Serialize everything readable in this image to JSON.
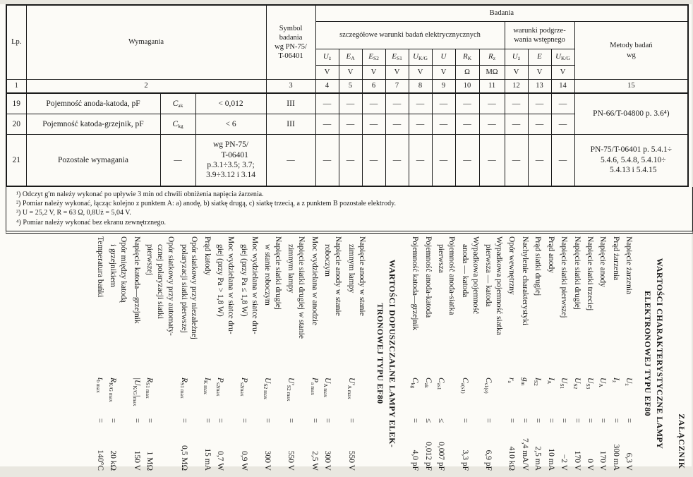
{
  "table": {
    "header": {
      "lp": "Lp.",
      "wymagania": "Wymagania",
      "symbol_badania": "Symbol\nbadania\nwg PN-75/\nT-06401",
      "badania": "Badania",
      "szczegolowe": "szczegółowe warunki badań elektrycznycznych",
      "podgrzewanie": "warunki podgrze-\nwania wstępnego",
      "metody": "Metody badań\nwg"
    },
    "cols": [
      {
        "m": "U",
        "s": "ż",
        "u": "V",
        "n": "4"
      },
      {
        "m": "E",
        "s": "A",
        "u": "V",
        "n": "5"
      },
      {
        "m": "E",
        "s": "S2",
        "u": "V",
        "n": "6"
      },
      {
        "m": "E",
        "s": "S1",
        "u": "V",
        "n": "7"
      },
      {
        "m": "U",
        "s": "K/G",
        "u": "V",
        "n": "8"
      },
      {
        "m": "U",
        "s": "",
        "u": "V",
        "n": "9"
      },
      {
        "m": "R",
        "s": "K",
        "u": "Ω",
        "n": "10"
      },
      {
        "m": "R",
        "s": "z",
        "u": "MΩ",
        "n": "11"
      },
      {
        "m": "U",
        "s": "ż",
        "u": "V",
        "n": "12"
      },
      {
        "m": "E",
        "s": "",
        "u": "V",
        "n": "13"
      },
      {
        "m": "U",
        "s": "K/G",
        "u": "V",
        "n": "14"
      }
    ],
    "nums": {
      "c1": "1",
      "c2": "2",
      "c3": "3",
      "c15": "15"
    },
    "rows": [
      {
        "lp": "19",
        "desc": "Pojemność anoda-katoda, pF",
        "sym_m": "C",
        "sym_s": "ak",
        "val": "< 0,012",
        "col3": "III"
      },
      {
        "lp": "20",
        "desc": "Pojemność katoda-grzejnik, pF",
        "sym_m": "C",
        "sym_s": "kg",
        "val": "< 6",
        "col3": "III"
      },
      {
        "lp": "21",
        "desc": "Pozostałe wymagania",
        "sym_dash": "—",
        "val": "wg PN-75/\n    T-06401\np.3.1÷3.5; 3.7;\n3.9÷3.12 i 3.14",
        "col3": "—"
      }
    ],
    "metody_19_20": "PN-66/T-04800 p. 3.6⁴)",
    "metody_21": "PN-75/T-06401 p. 5.4.1÷\n  5.4.6, 5.4.8, 5.4.10÷\n  5.4.13 i 5.4.15",
    "dash": "—"
  },
  "footnotes": {
    "f1": "¹) Odczyt g′m należy wykonać po upływie 3 min od chwili obniżenia napięcia żarzenia.",
    "f2": "²) Pomiar należy wykonać, łącząc kolejno z punktem A: a) anodę, b) siatkę drugą, c) siatkę trzecią, a z punktem B pozostałe elektrody.",
    "f3": "³) U = 25,2 V, R = 63 Ω, 0,8Uż = 5,04 V.",
    "f4": "⁴) Pomiar należy wykonać bez ekranu zewnętrznego."
  },
  "appendix": {
    "zalacznik": "ZAŁĄCZNIK",
    "blocks": [
      {
        "title": "WARTOŚCI CHARAKTERYSTYCZNE LAMPY\nELEKTRONOWEJ TYPU EF80",
        "rows": [
          {
            "name": "Napięcie żarzenia",
            "m": "U",
            "s": "ż",
            "eq": "=",
            "val": "6,3 V"
          },
          {
            "name": "Prąd żarzenia",
            "m": "I",
            "s": "ż",
            "eq": "=",
            "val": "300 mA"
          },
          {
            "name": "Napięcie anody",
            "m": "U",
            "s": "A",
            "eq": "=",
            "val": "170 V"
          },
          {
            "name": "Napięcie siatki trzeciej",
            "m": "U",
            "s": "S3",
            "eq": "=",
            "val": "0 V"
          },
          {
            "name": "Napięcie siatki drugiej",
            "m": "U",
            "s": "S2",
            "eq": "=",
            "val": "170 V"
          },
          {
            "name": "Napięcie siatki pierwszej",
            "m": "U",
            "s": "S1",
            "eq": "=",
            "val": "−2 V"
          },
          {
            "name": "Prąd anody",
            "m": "I",
            "s": "A",
            "eq": "=",
            "val": "10 mA"
          },
          {
            "name": "Prąd siatki drugiej",
            "m": "I",
            "s": "S2",
            "eq": "=",
            "val": "2,5 mA"
          },
          {
            "name": "Nachylenie charakterystyki",
            "m": "g",
            "s": "m",
            "eq": "=",
            "val": "7,4 mA/V"
          },
          {
            "name": "Opór wewnętrzny",
            "m": "r",
            "s": "a",
            "eq": "=",
            "val": "410 kΩ"
          },
          {
            "name": "Wypadkowa pojemność siatka\npierwsza — katoda",
            "m": "C",
            "s": "s1(e)",
            "eq": "=",
            "val": "6,9 pF"
          },
          {
            "name": "Wypadkowa pojemność\nanoda — katoda",
            "m": "C",
            "s": "a(s1)",
            "eq": "=",
            "val": "3,3 pF"
          },
          {
            "name": "Pojemność anoda-siatka\npierwsza",
            "m": "C",
            "s": "as1",
            "eq": "≤",
            "val": "0,007 pF"
          },
          {
            "name": "Pojemność anoda-katoda",
            "m": "C",
            "s": "ak",
            "eq": "≤",
            "val": "0,012 pF"
          },
          {
            "name": "Pojemność katoda—grzejnik",
            "m": "C",
            "s": "kg",
            "eq": "=",
            "val": "4,0 pF"
          }
        ]
      },
      {
        "title": "WARTOŚCI DOPUSZCZALNE LAMPY ELEK-\nTRONOWEJ TYPU EF80",
        "rows": [
          {
            "name": "Napięcie anody w stanie\nzimnym lampy",
            "m": "U′",
            "s": "A max",
            "eq": "=",
            "val": "550 V"
          },
          {
            "name": "Napięcie anody w stanie\nroboczym",
            "m": "U",
            "s": "A max",
            "eq": "=",
            "val": "300 V"
          },
          {
            "name": "Moc wydzielana w anodzie",
            "m": "P",
            "s": "a max",
            "eq": "=",
            "val": "2,5 W"
          },
          {
            "name": "Napięcie siatki drugiej w stanie\nzimnym lampy",
            "m": "U′",
            "s": "S2 max",
            "eq": "=",
            "val": "550 V"
          },
          {
            "name": "Napięcie siatki drugiej\nw stanie roboczym",
            "m": "U",
            "s": "S2 max",
            "eq": "=",
            "val": "300 V"
          },
          {
            "name": "Moc wydzielana w siatce dru-\ngiej (przy Pa ≤ 1,8 W)",
            "m": "P",
            "s": "s2max",
            "eq": "=",
            "val": "0,9 W"
          },
          {
            "name": "Moc wydzielana w siatce dru-\ngiej (przy Pa > 1,8 W)",
            "m": "P",
            "s": "s2max",
            "eq": "=",
            "val": "0,7 W"
          },
          {
            "name": "Prąd katody",
            "m": "I",
            "s": "K max",
            "eq": "=",
            "val": "15 mA"
          },
          {
            "name": "Opór siatkowy przy niezależnej\npolaryzacji siatki pierwszej",
            "m": "R",
            "s": "S1 max",
            "eq": "=",
            "val": "0,5 MΩ"
          },
          {
            "name": "Opór siatkowy przy automaty-\ncznej polaryzacji siatki\npierwszej",
            "m": "R",
            "s": "S1 max",
            "eq": "=",
            "val": "1 MΩ"
          },
          {
            "name": "Napięcie katoda—grzejnik",
            "m": "|U",
            "s": "K/G",
            "m2": "|",
            "s2": "max",
            "eq": "=",
            "val": "150 V"
          },
          {
            "name": "Opór między katodą\ni grzejnikiem",
            "m": "R",
            "s": "K/G max",
            "eq": "=",
            "val": "20 kΩ"
          },
          {
            "name": "Temperatura bańki",
            "m": "t",
            "s": "b max",
            "eq": "=",
            "val": "140°C"
          }
        ]
      }
    ]
  }
}
